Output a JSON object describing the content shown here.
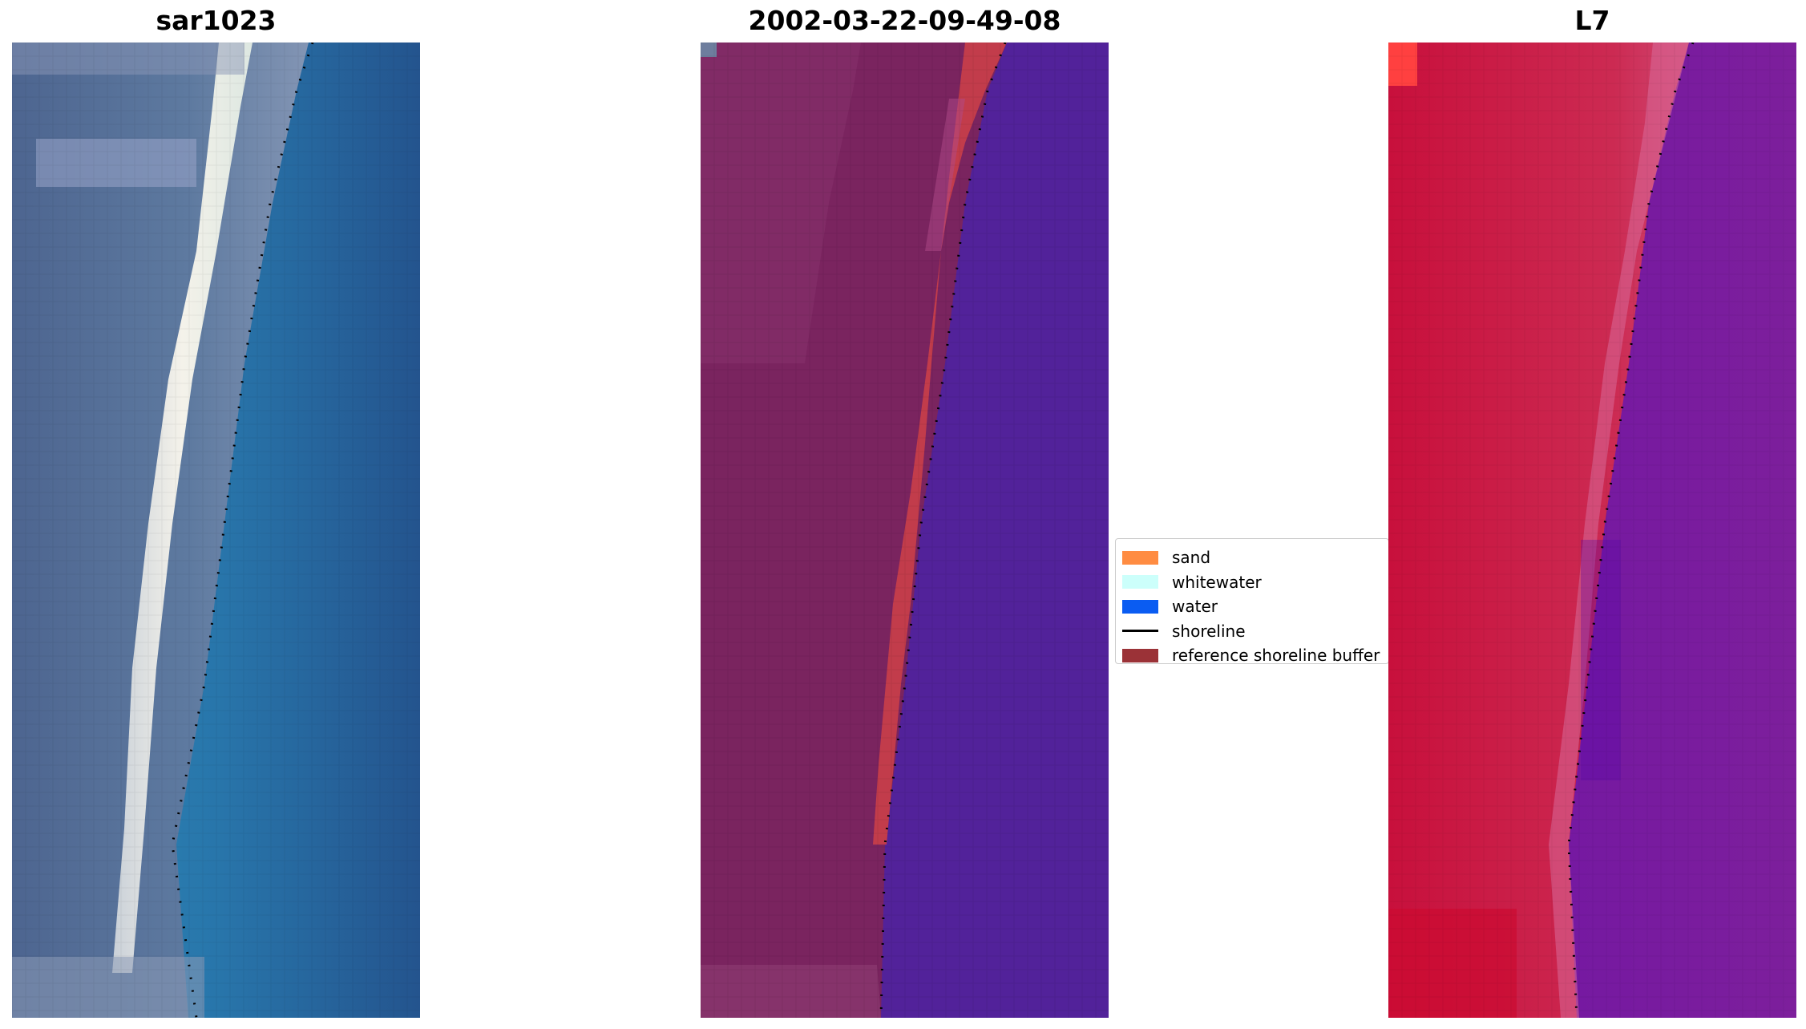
{
  "panels": {
    "rgb": {
      "title": "sar1023"
    },
    "classified": {
      "title": "2002-03-22-09-49-08"
    },
    "index": {
      "title": "L7"
    }
  },
  "legend": {
    "items": [
      {
        "label": "sand",
        "color": "#ff8c42",
        "kind": "patch"
      },
      {
        "label": "whitewater",
        "color": "#ccfffb",
        "kind": "patch"
      },
      {
        "label": "water",
        "color": "#0a5cf2",
        "kind": "patch"
      },
      {
        "label": "shoreline",
        "color": "#000000",
        "kind": "line"
      },
      {
        "label": "reference shoreline buffer",
        "color": "#9b3237",
        "kind": "patch"
      }
    ]
  },
  "colors": {
    "classified_water": "#52229a",
    "classified_buffer": "#c23c4b",
    "classified_land": "#7a245f",
    "index_land": "#c8103c",
    "index_water": "#7417a0"
  }
}
